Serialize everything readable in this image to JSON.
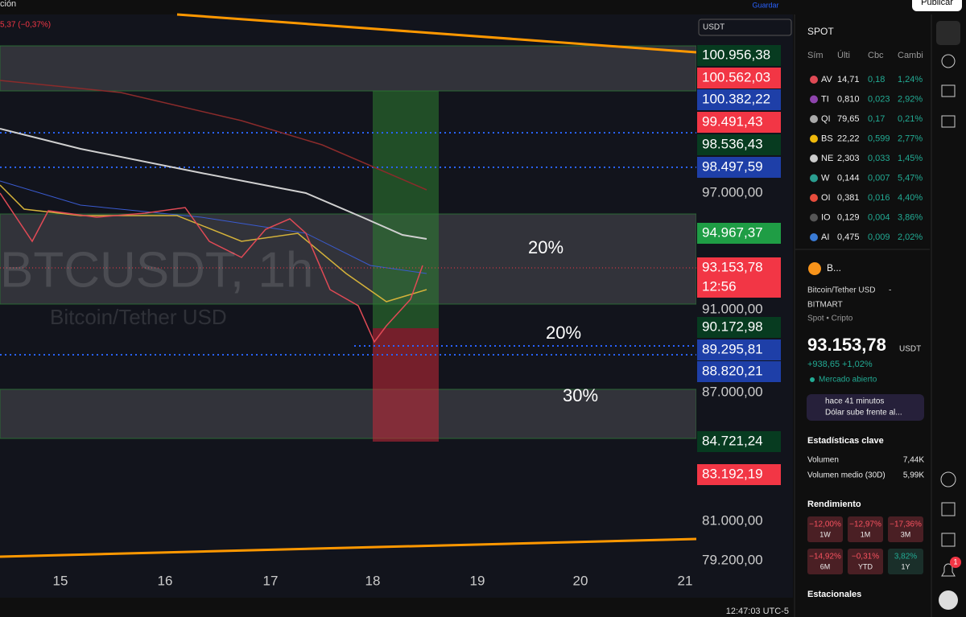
{
  "top_bar": {
    "change": "5,37 (−0,37%)",
    "menu": "ción",
    "save": "Guardar",
    "publish": "Publicar"
  },
  "chart": {
    "watermark_symbol": "BTCUSDT, 1h",
    "watermark_name": "Bitcoin/Tether USD",
    "annotations": [
      "20%",
      "20%",
      "30%"
    ],
    "currency": "USDT",
    "price_labels": [
      {
        "text": "100.956,38",
        "style": "green"
      },
      {
        "text": "100.562,03",
        "style": "red"
      },
      {
        "text": "100.382,22",
        "style": "blue"
      },
      {
        "text": "99.491,43",
        "style": "red"
      },
      {
        "text": "98.536,43",
        "style": "green"
      },
      {
        "text": "98.497,59",
        "style": "blue"
      },
      {
        "text": "97.000,00",
        "style": "plain"
      },
      {
        "text": "94.967,37",
        "style": "green"
      },
      {
        "text": "93.153,78",
        "style": "red"
      },
      {
        "text": "12:56",
        "style": "red"
      },
      {
        "text": "91.000,00",
        "style": "plain"
      },
      {
        "text": "90.172,98",
        "style": "green"
      },
      {
        "text": "89.295,81",
        "style": "blue"
      },
      {
        "text": "88.820,21",
        "style": "blue"
      },
      {
        "text": "87.000,00",
        "style": "plain"
      },
      {
        "text": "84.721,24",
        "style": "green"
      },
      {
        "text": "83.192,19",
        "style": "red"
      },
      {
        "text": "81.000,00",
        "style": "plain"
      },
      {
        "text": "79.200,00",
        "style": "plain"
      }
    ],
    "time_labels": [
      "15",
      "16",
      "17",
      "18",
      "19",
      "20",
      "21"
    ],
    "clock": "12:47:03 UTC-5"
  },
  "watchlist": {
    "title": "SPOT",
    "columns": [
      "Sím",
      "Últi",
      "Cbc",
      "Cambi"
    ],
    "rows": [
      [
        "AV",
        "14,71",
        "0,18",
        "1,24%"
      ],
      [
        "TI",
        "0,810",
        "0,023",
        "2,92%"
      ],
      [
        "QI",
        "79,65",
        "0,17",
        "0,21%"
      ],
      [
        "BS",
        "22,22",
        "0,599",
        "2,77%"
      ],
      [
        "NE",
        "2,303",
        "0,033",
        "1,45%"
      ],
      [
        "W",
        "0,144",
        "0,007",
        "5,47%"
      ],
      [
        "OI",
        "0,381",
        "0,016",
        "4,40%"
      ],
      [
        "IO",
        "0,129",
        "0,004",
        "3,86%"
      ],
      [
        "AI",
        "0,475",
        "0,009",
        "2,02%"
      ]
    ]
  },
  "details": {
    "symbol": "B...",
    "name": "Bitcoin/Tether USD",
    "dash": "-",
    "exchange": "BITMART",
    "kind": "Spot • Cripto",
    "price": "93.153,78",
    "currency": "USDT",
    "change": "+938,65",
    "change_pct": "+1,02%",
    "status": "Mercado abierto",
    "news_time": "hace 41 minutos",
    "news": "Dólar sube frente al...",
    "stats_title": "Estadísticas clave",
    "stats": [
      [
        "Volumen",
        "7,44K"
      ],
      [
        "Volumen medio (30D)",
        "5,99K"
      ]
    ],
    "perf_title": "Rendimiento",
    "perf": [
      [
        "−12,00%",
        "1W"
      ],
      [
        "−12,97%",
        "1M"
      ],
      [
        "−17,36%",
        "3M"
      ],
      [
        "−14,92%",
        "6M"
      ],
      [
        "−0,31%",
        "YTD"
      ],
      [
        "3,82%",
        "1Y"
      ]
    ],
    "seasonal_title": "Estacionales"
  },
  "sidebar": {
    "badge": "1"
  }
}
